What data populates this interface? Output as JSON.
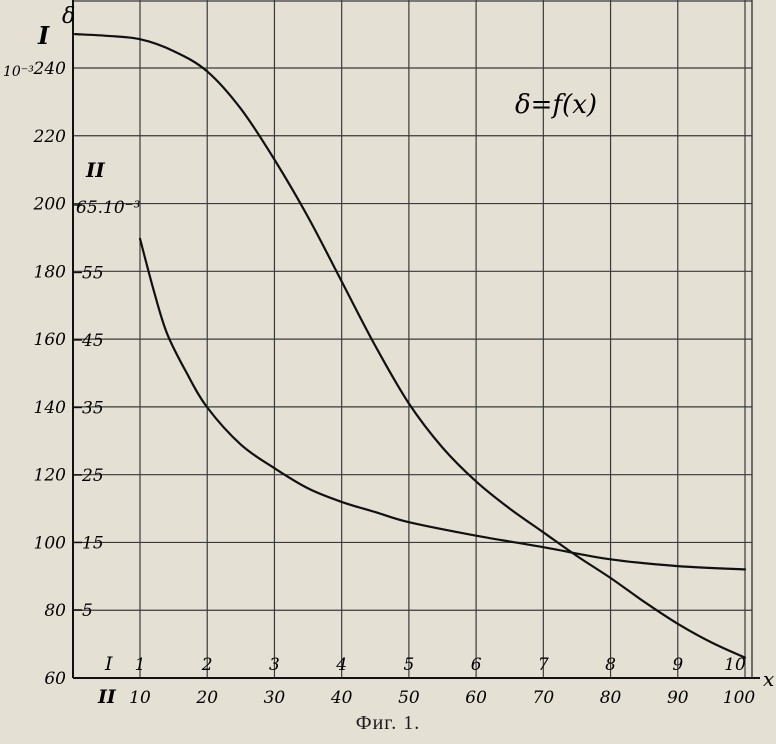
{
  "figure": {
    "caption": "Фиг. 1.",
    "function_label": "δ=f(x)"
  },
  "chart_data": {
    "type": "line",
    "grid": true,
    "y_axis": {
      "label": "δ",
      "scale_I_marker": "I",
      "scale_I_factor": "10⁻³",
      "scale_I_ticks": [
        60,
        80,
        100,
        120,
        140,
        160,
        180,
        200,
        220,
        240
      ],
      "scale_I_range": [
        60,
        255
      ],
      "scale_II_marker": "II",
      "scale_II_top_label": "65.10⁻³",
      "scale_II_ticks": [
        5,
        15,
        25,
        35,
        45,
        55,
        65
      ],
      "scale_II_range": [
        0,
        66
      ]
    },
    "x_axis": {
      "label": "x",
      "scale_I_marker": "I",
      "scale_I_ticks": [
        1,
        2,
        3,
        4,
        5,
        6,
        7,
        8,
        9,
        10
      ],
      "scale_II_marker": "II",
      "scale_II_ticks": [
        10,
        20,
        30,
        40,
        50,
        60,
        70,
        80,
        90,
        100
      ]
    },
    "series": [
      {
        "name": "I",
        "x_scale": "I",
        "x": [
          0,
          0.5,
          1,
          1.5,
          2,
          2.5,
          3,
          3.5,
          4,
          4.5,
          5,
          5.5,
          6,
          6.5,
          7,
          7.5,
          8,
          8.5,
          9,
          9.5,
          10
        ],
        "y": [
          250,
          249.5,
          248.5,
          245,
          239,
          228,
          213,
          196,
          177,
          158,
          141,
          128,
          118,
          110,
          103,
          96,
          89.5,
          82.5,
          76,
          70.5,
          66
        ]
      },
      {
        "name": "II",
        "x_scale": "II",
        "x": [
          10,
          12,
          14,
          17,
          20,
          25,
          30,
          35,
          40,
          45,
          50,
          60,
          70,
          80,
          90,
          100
        ],
        "y": [
          60,
          52.5,
          46,
          40,
          35,
          29.5,
          26,
          23,
          21,
          19.5,
          18,
          16,
          14.3,
          12.5,
          11.5,
          11
        ]
      }
    ]
  }
}
